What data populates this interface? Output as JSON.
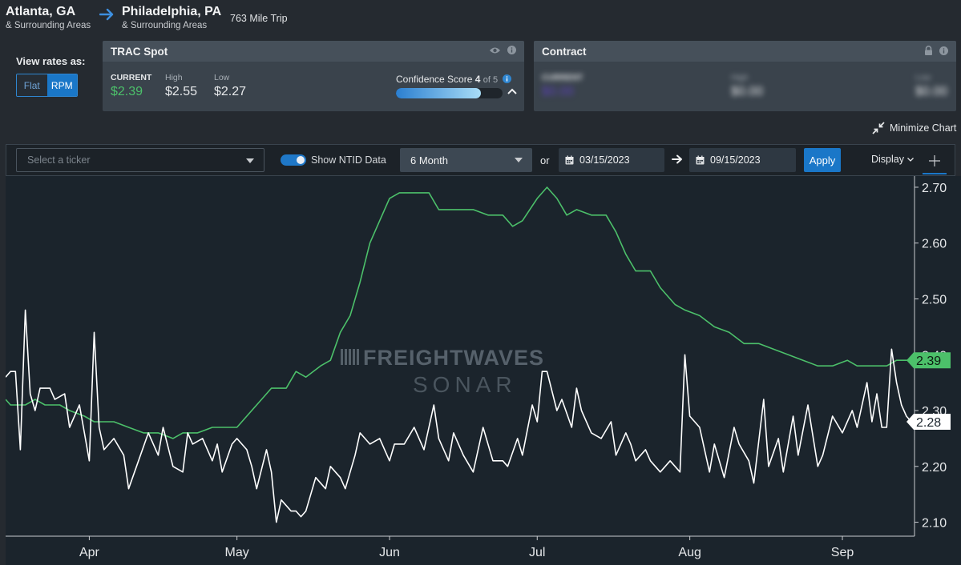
{
  "route": {
    "origin_city": "Atlanta, GA",
    "origin_sub": "& Surrounding Areas",
    "dest_city": "Philadelphia, PA",
    "dest_sub": "& Surrounding Areas",
    "trip": "763 Mile Trip"
  },
  "view_rates": {
    "label": "View rates as:",
    "options": [
      "Flat",
      "RPM"
    ],
    "selected": "RPM"
  },
  "spot_panel": {
    "title": "TRAC Spot",
    "current_label": "CURRENT",
    "current_value": "$2.39",
    "high_label": "High",
    "high_value": "$2.55",
    "low_label": "Low",
    "low_value": "$2.27",
    "confidence_label": "Confidence Score",
    "confidence_score": "4",
    "confidence_of": "of 5",
    "confidence_fraction": 0.8,
    "icons": [
      "eye-icon",
      "info-icon"
    ]
  },
  "contract_panel": {
    "title": "Contract",
    "current_label": "CURRENT",
    "current_value": "$0.00",
    "high_label": "High",
    "high_value": "$0.00",
    "low_label": "Low",
    "low_value": "$0.00",
    "icons": [
      "lock-icon",
      "info-icon"
    ]
  },
  "minimize_label": "Minimize Chart",
  "toolbar": {
    "ticker_placeholder": "Select a ticker",
    "ntid_label": "Show NTID Data",
    "ntid_on": true,
    "period": "6 Month",
    "or": "or",
    "start_date": "03/15/2023",
    "end_date": "09/15/2023",
    "apply": "Apply",
    "display": "Display"
  },
  "watermark": {
    "line1": "FREIGHTWAVES",
    "line2": "SONAR"
  },
  "colors": {
    "green": "#4cc06a",
    "white": "#ffffff",
    "accent": "#1a77c8",
    "bg": "#1b242c"
  },
  "chart_data": {
    "type": "line",
    "x_start": "2023-03-15",
    "x_end": "2023-09-15",
    "x_ticks": [
      {
        "date": "2023-04-01",
        "label": "Apr"
      },
      {
        "date": "2023-05-01",
        "label": "May"
      },
      {
        "date": "2023-06-01",
        "label": "Jun"
      },
      {
        "date": "2023-07-01",
        "label": "Jul"
      },
      {
        "date": "2023-08-01",
        "label": "Aug"
      },
      {
        "date": "2023-09-01",
        "label": "Sep"
      }
    ],
    "ylim": [
      2.075,
      2.72
    ],
    "y_ticks": [
      "2.10",
      "2.20",
      "2.30",
      "2.40",
      "2.50",
      "2.60",
      "2.70"
    ],
    "series": [
      {
        "color": "#4cc06a",
        "last_label": "2.39",
        "points": [
          [
            "2023-03-15",
            2.32
          ],
          [
            "2023-03-16",
            2.31
          ],
          [
            "2023-03-17",
            2.31
          ],
          [
            "2023-03-19",
            2.31
          ],
          [
            "2023-03-21",
            2.32
          ],
          [
            "2023-03-23",
            2.31
          ],
          [
            "2023-03-26",
            2.31
          ],
          [
            "2023-03-28",
            2.3
          ],
          [
            "2023-03-31",
            2.29
          ],
          [
            "2023-04-02",
            2.28
          ],
          [
            "2023-04-04",
            2.28
          ],
          [
            "2023-04-06",
            2.28
          ],
          [
            "2023-04-09",
            2.27
          ],
          [
            "2023-04-12",
            2.26
          ],
          [
            "2023-04-15",
            2.26
          ],
          [
            "2023-04-18",
            2.25
          ],
          [
            "2023-04-20",
            2.26
          ],
          [
            "2023-04-23",
            2.26
          ],
          [
            "2023-04-26",
            2.27
          ],
          [
            "2023-04-29",
            2.27
          ],
          [
            "2023-05-01",
            2.27
          ],
          [
            "2023-05-03",
            2.29
          ],
          [
            "2023-05-06",
            2.32
          ],
          [
            "2023-05-08",
            2.34
          ],
          [
            "2023-05-11",
            2.34
          ],
          [
            "2023-05-13",
            2.37
          ],
          [
            "2023-05-15",
            2.36
          ],
          [
            "2023-05-18",
            2.38
          ],
          [
            "2023-05-20",
            2.39
          ],
          [
            "2023-05-22",
            2.44
          ],
          [
            "2023-05-24",
            2.47
          ],
          [
            "2023-05-26",
            2.53
          ],
          [
            "2023-05-28",
            2.6
          ],
          [
            "2023-05-30",
            2.64
          ],
          [
            "2023-06-01",
            2.68
          ],
          [
            "2023-06-03",
            2.69
          ],
          [
            "2023-06-06",
            2.69
          ],
          [
            "2023-06-09",
            2.69
          ],
          [
            "2023-06-11",
            2.66
          ],
          [
            "2023-06-14",
            2.66
          ],
          [
            "2023-06-18",
            2.66
          ],
          [
            "2023-06-21",
            2.65
          ],
          [
            "2023-06-24",
            2.65
          ],
          [
            "2023-06-26",
            2.63
          ],
          [
            "2023-06-28",
            2.64
          ],
          [
            "2023-07-01",
            2.68
          ],
          [
            "2023-07-03",
            2.7
          ],
          [
            "2023-07-05",
            2.68
          ],
          [
            "2023-07-07",
            2.65
          ],
          [
            "2023-07-09",
            2.66
          ],
          [
            "2023-07-12",
            2.65
          ],
          [
            "2023-07-15",
            2.65
          ],
          [
            "2023-07-17",
            2.62
          ],
          [
            "2023-07-19",
            2.58
          ],
          [
            "2023-07-21",
            2.55
          ],
          [
            "2023-07-24",
            2.55
          ],
          [
            "2023-07-26",
            2.52
          ],
          [
            "2023-07-29",
            2.49
          ],
          [
            "2023-07-31",
            2.48
          ],
          [
            "2023-08-03",
            2.47
          ],
          [
            "2023-08-06",
            2.45
          ],
          [
            "2023-08-09",
            2.44
          ],
          [
            "2023-08-12",
            2.42
          ],
          [
            "2023-08-15",
            2.42
          ],
          [
            "2023-08-18",
            2.41
          ],
          [
            "2023-08-21",
            2.4
          ],
          [
            "2023-08-24",
            2.39
          ],
          [
            "2023-08-27",
            2.38
          ],
          [
            "2023-08-30",
            2.38
          ],
          [
            "2023-09-02",
            2.39
          ],
          [
            "2023-09-04",
            2.38
          ],
          [
            "2023-09-07",
            2.38
          ],
          [
            "2023-09-10",
            2.38
          ],
          [
            "2023-09-12",
            2.39
          ],
          [
            "2023-09-15",
            2.39
          ]
        ]
      },
      {
        "color": "#ffffff",
        "last_label": "2.28",
        "points": [
          [
            "2023-03-15",
            2.36
          ],
          [
            "2023-03-16",
            2.37
          ],
          [
            "2023-03-17",
            2.37
          ],
          [
            "2023-03-18",
            2.23
          ],
          [
            "2023-03-19",
            2.48
          ],
          [
            "2023-03-20",
            2.33
          ],
          [
            "2023-03-21",
            2.3
          ],
          [
            "2023-03-22",
            2.34
          ],
          [
            "2023-03-24",
            2.34
          ],
          [
            "2023-03-25",
            2.32
          ],
          [
            "2023-03-27",
            2.33
          ],
          [
            "2023-03-28",
            2.27
          ],
          [
            "2023-03-30",
            2.31
          ],
          [
            "2023-03-31",
            2.26
          ],
          [
            "2023-04-01",
            2.21
          ],
          [
            "2023-04-02",
            2.44
          ],
          [
            "2023-04-03",
            2.27
          ],
          [
            "2023-04-04",
            2.23
          ],
          [
            "2023-04-06",
            2.25
          ],
          [
            "2023-04-08",
            2.22
          ],
          [
            "2023-04-09",
            2.16
          ],
          [
            "2023-04-11",
            2.21
          ],
          [
            "2023-04-13",
            2.26
          ],
          [
            "2023-04-15",
            2.22
          ],
          [
            "2023-04-16",
            2.27
          ],
          [
            "2023-04-18",
            2.2
          ],
          [
            "2023-04-20",
            2.19
          ],
          [
            "2023-04-21",
            2.26
          ],
          [
            "2023-04-22",
            2.24
          ],
          [
            "2023-04-24",
            2.25
          ],
          [
            "2023-04-26",
            2.21
          ],
          [
            "2023-04-27",
            2.24
          ],
          [
            "2023-04-28",
            2.19
          ],
          [
            "2023-04-30",
            2.24
          ],
          [
            "2023-05-01",
            2.25
          ],
          [
            "2023-05-03",
            2.23
          ],
          [
            "2023-05-04",
            2.2
          ],
          [
            "2023-05-05",
            2.16
          ],
          [
            "2023-05-07",
            2.23
          ],
          [
            "2023-05-08",
            2.19
          ],
          [
            "2023-05-09",
            2.1
          ],
          [
            "2023-05-10",
            2.14
          ],
          [
            "2023-05-12",
            2.12
          ],
          [
            "2023-05-13",
            2.12
          ],
          [
            "2023-05-14",
            2.11
          ],
          [
            "2023-05-15",
            2.12
          ],
          [
            "2023-05-17",
            2.18
          ],
          [
            "2023-05-19",
            2.16
          ],
          [
            "2023-05-20",
            2.2
          ],
          [
            "2023-05-22",
            2.18
          ],
          [
            "2023-05-23",
            2.16
          ],
          [
            "2023-05-25",
            2.22
          ],
          [
            "2023-05-26",
            2.26
          ],
          [
            "2023-05-28",
            2.24
          ],
          [
            "2023-05-30",
            2.25
          ],
          [
            "2023-06-01",
            2.21
          ],
          [
            "2023-06-02",
            2.24
          ],
          [
            "2023-06-04",
            2.24
          ],
          [
            "2023-06-06",
            2.27
          ],
          [
            "2023-06-08",
            2.23
          ],
          [
            "2023-06-10",
            2.31
          ],
          [
            "2023-06-11",
            2.25
          ],
          [
            "2023-06-13",
            2.21
          ],
          [
            "2023-06-14",
            2.26
          ],
          [
            "2023-06-16",
            2.22
          ],
          [
            "2023-06-18",
            2.19
          ],
          [
            "2023-06-20",
            2.27
          ],
          [
            "2023-06-22",
            2.21
          ],
          [
            "2023-06-24",
            2.21
          ],
          [
            "2023-06-25",
            2.2
          ],
          [
            "2023-06-27",
            2.25
          ],
          [
            "2023-06-28",
            2.22
          ],
          [
            "2023-06-30",
            2.31
          ],
          [
            "2023-07-01",
            2.28
          ],
          [
            "2023-07-02",
            2.37
          ],
          [
            "2023-07-03",
            2.37
          ],
          [
            "2023-07-05",
            2.3
          ],
          [
            "2023-07-06",
            2.32
          ],
          [
            "2023-07-08",
            2.27
          ],
          [
            "2023-07-09",
            2.34
          ],
          [
            "2023-07-10",
            2.3
          ],
          [
            "2023-07-12",
            2.26
          ],
          [
            "2023-07-14",
            2.25
          ],
          [
            "2023-07-16",
            2.28
          ],
          [
            "2023-07-17",
            2.22
          ],
          [
            "2023-07-19",
            2.26
          ],
          [
            "2023-07-20",
            2.24
          ],
          [
            "2023-07-21",
            2.21
          ],
          [
            "2023-07-23",
            2.23
          ],
          [
            "2023-07-24",
            2.21
          ],
          [
            "2023-07-26",
            2.19
          ],
          [
            "2023-07-28",
            2.21
          ],
          [
            "2023-07-30",
            2.19
          ],
          [
            "2023-07-31",
            2.4
          ],
          [
            "2023-08-01",
            2.29
          ],
          [
            "2023-08-03",
            2.27
          ],
          [
            "2023-08-05",
            2.19
          ],
          [
            "2023-08-06",
            2.24
          ],
          [
            "2023-08-08",
            2.18
          ],
          [
            "2023-08-10",
            2.27
          ],
          [
            "2023-08-11",
            2.24
          ],
          [
            "2023-08-13",
            2.21
          ],
          [
            "2023-08-14",
            2.17
          ],
          [
            "2023-08-16",
            2.32
          ],
          [
            "2023-08-17",
            2.2
          ],
          [
            "2023-08-19",
            2.25
          ],
          [
            "2023-08-20",
            2.19
          ],
          [
            "2023-08-22",
            2.29
          ],
          [
            "2023-08-23",
            2.22
          ],
          [
            "2023-08-25",
            2.31
          ],
          [
            "2023-08-27",
            2.2
          ],
          [
            "2023-08-28",
            2.22
          ],
          [
            "2023-08-30",
            2.29
          ],
          [
            "2023-09-01",
            2.26
          ],
          [
            "2023-09-03",
            2.3
          ],
          [
            "2023-09-04",
            2.27
          ],
          [
            "2023-09-06",
            2.35
          ],
          [
            "2023-09-07",
            2.28
          ],
          [
            "2023-09-08",
            2.33
          ],
          [
            "2023-09-09",
            2.27
          ],
          [
            "2023-09-10",
            2.27
          ],
          [
            "2023-09-11",
            2.41
          ],
          [
            "2023-09-12",
            2.35
          ],
          [
            "2023-09-13",
            2.31
          ],
          [
            "2023-09-14",
            2.29
          ],
          [
            "2023-09-15",
            2.28
          ]
        ]
      }
    ]
  }
}
